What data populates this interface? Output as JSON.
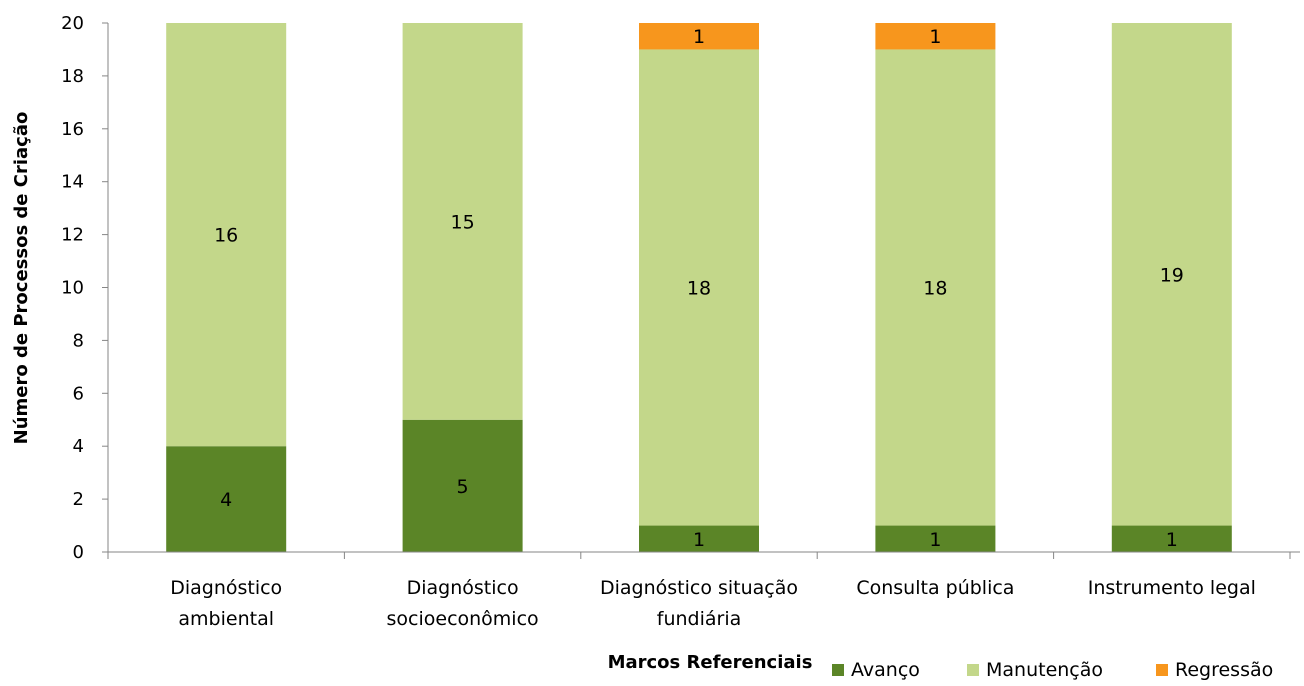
{
  "chart_data": {
    "type": "bar",
    "stacked": true,
    "title": "",
    "xlabel": "Marcos Referenciais",
    "ylabel": "Número de Processos de Criação",
    "ylim": [
      0,
      20
    ],
    "yticks": [
      0,
      2,
      4,
      6,
      8,
      10,
      12,
      14,
      16,
      18,
      20
    ],
    "grid": false,
    "legend_position": "bottom-right",
    "categories": [
      [
        "Diagnóstico",
        "ambiental"
      ],
      [
        "Diagnóstico",
        "socioeconômico"
      ],
      [
        "Diagnóstico situação",
        "fundiária"
      ],
      [
        "Consulta pública"
      ],
      [
        "Instrumento legal"
      ]
    ],
    "series": [
      {
        "name": "Avanço",
        "color": "#5b8527",
        "values": [
          4,
          5,
          1,
          1,
          1
        ]
      },
      {
        "name": "Manutenção",
        "color": "#c3d78a",
        "values": [
          16,
          15,
          18,
          18,
          19
        ]
      },
      {
        "name": "Regressão",
        "color": "#f7961d",
        "values": [
          0,
          0,
          1,
          1,
          0
        ]
      }
    ]
  }
}
